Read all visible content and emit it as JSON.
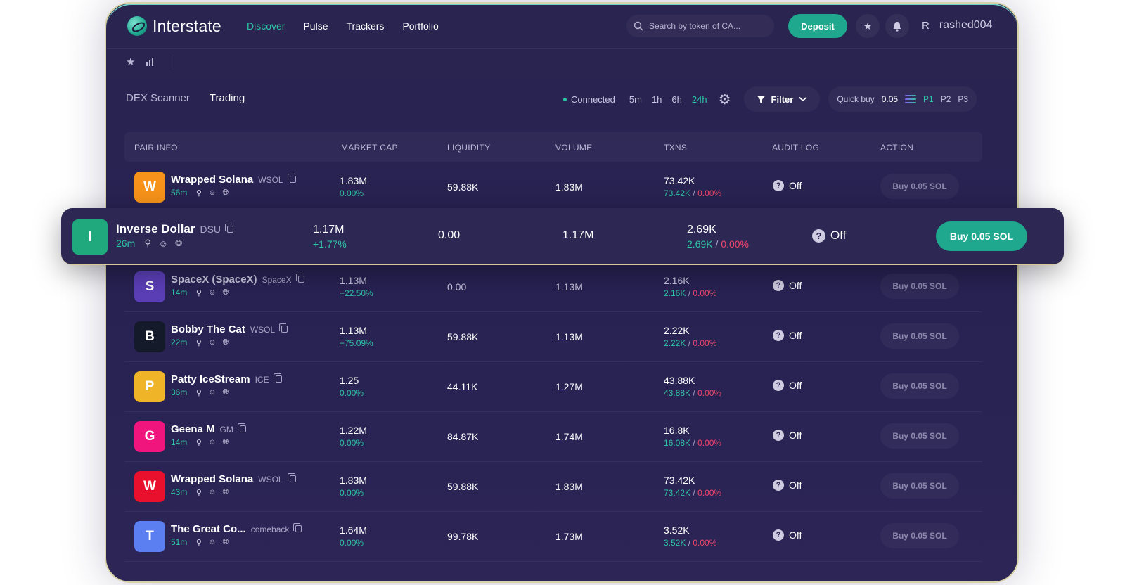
{
  "app": {
    "name": "Interstate"
  },
  "nav": [
    {
      "label": "Discover",
      "active": true
    },
    {
      "label": "Pulse",
      "active": false
    },
    {
      "label": "Trackers",
      "active": false
    },
    {
      "label": "Portfolio",
      "active": false
    }
  ],
  "search": {
    "placeholder": "Search by token of CA..."
  },
  "header": {
    "deposit_label": "Deposit",
    "avatar_initial": "R",
    "username": "rashed004"
  },
  "tabs": [
    {
      "label": "DEX Scanner",
      "active": false
    },
    {
      "label": "Trading",
      "active": true
    }
  ],
  "status": {
    "connection": "Connected"
  },
  "timeframes": [
    {
      "label": "5m"
    },
    {
      "label": "1h"
    },
    {
      "label": "6h"
    },
    {
      "label": "24h",
      "active": true
    }
  ],
  "filter_label": "Filter",
  "quick_buy": {
    "label": "Quick buy",
    "amount": "0.05",
    "presets": [
      "P1",
      "P2",
      "P3"
    ],
    "active_preset": "P1"
  },
  "columns": [
    "PAIR INFO",
    "MARKET CAP",
    "LIQUIDITY",
    "VOLUME",
    "TXNS",
    "AUDIT LOG",
    "ACTION"
  ],
  "colors": {
    "accent": "#2ec5a3",
    "button": "#1fa88e",
    "negative": "#f0466b",
    "background": "#2a2450"
  },
  "rows": [
    {
      "initial": "W",
      "color": "#f7931a",
      "name": "Wrapped Solana",
      "ticker": "WSOL",
      "age": "56m",
      "mcap": "1.83M",
      "mcap_change": "0.00%",
      "liquidity": "59.88K",
      "volume": "1.83M",
      "txns": "73.42K",
      "txns_buys": "73.42K",
      "txns_sep": " / ",
      "txns_pct": "0.00%",
      "audit": "Off",
      "buy": "Buy 0.05 SOL"
    },
    {
      "initial": "I",
      "color": "#1fa97d",
      "name": "Inverse Dollar",
      "ticker": "DSU",
      "age": "26m",
      "mcap": "1.17M",
      "mcap_change": "+1.77%",
      "liquidity": "0.00",
      "volume": "1.17M",
      "txns": "2.69K",
      "txns_buys": "2.69K",
      "txns_sep": " / ",
      "txns_pct": "0.00%",
      "audit": "Off",
      "buy": "Buy 0.05 SOL"
    },
    {
      "initial": "S",
      "color": "#5b3fb8",
      "name": "SpaceX (SpaceX)",
      "ticker": "SpaceX",
      "age": "14m",
      "mcap": "1.13M",
      "mcap_change": "+22.50%",
      "liquidity": "0.00",
      "volume": "1.13M",
      "txns": "2.16K",
      "txns_buys": "2.16K",
      "txns_sep": " / ",
      "txns_pct": "0.00%",
      "audit": "Off",
      "buy": "Buy 0.05 SOL"
    },
    {
      "initial": "B",
      "color": "#141a2a",
      "name": "Bobby The Cat",
      "ticker": "WSOL",
      "age": "22m",
      "mcap": "1.13M",
      "mcap_change": "+75.09%",
      "liquidity": "59.88K",
      "volume": "1.13M",
      "txns": "2.22K",
      "txns_buys": "2.22K",
      "txns_sep": " / ",
      "txns_pct": "0.00%",
      "audit": "Off",
      "buy": "Buy 0.05 SOL"
    },
    {
      "initial": "P",
      "color": "#f0b429",
      "name": "Patty IceStream",
      "ticker": "ICE",
      "age": "36m",
      "mcap": "1.25",
      "mcap_change": "0.00%",
      "liquidity": "44.11K",
      "volume": "1.27M",
      "txns": "43.88K",
      "txns_buys": "43.88K",
      "txns_sep": " / ",
      "txns_pct": "0.00%",
      "audit": "Off",
      "buy": "Buy 0.05 SOL"
    },
    {
      "initial": "G",
      "color": "#f0157d",
      "name": "Geena M",
      "ticker": "GM",
      "age": "14m",
      "mcap": "1.22M",
      "mcap_change": "0.00%",
      "liquidity": "84.87K",
      "volume": "1.74M",
      "txns": "16.8K",
      "txns_buys": "16.08K",
      "txns_sep": " / ",
      "txns_pct": "0.00%",
      "audit": "Off",
      "buy": "Buy 0.05 SOL"
    },
    {
      "initial": "W",
      "color": "#e8102d",
      "name": "Wrapped Solana",
      "ticker": "WSOL",
      "age": "43m",
      "mcap": "1.83M",
      "mcap_change": "0.00%",
      "liquidity": "59.88K",
      "volume": "1.83M",
      "txns": "73.42K",
      "txns_buys": "73.42K",
      "txns_sep": " / ",
      "txns_pct": "0.00%",
      "audit": "Off",
      "buy": "Buy 0.05 SOL"
    },
    {
      "initial": "T",
      "color": "#5b7ef0",
      "name": "The Great Co...",
      "ticker": "comeback",
      "age": "51m",
      "mcap": "1.64M",
      "mcap_change": "0.00%",
      "liquidity": "99.78K",
      "volume": "1.73M",
      "txns": "3.52K",
      "txns_buys": "3.52K",
      "txns_sep": " / ",
      "txns_pct": "0.00%",
      "audit": "Off",
      "buy": "Buy 0.05 SOL"
    }
  ]
}
